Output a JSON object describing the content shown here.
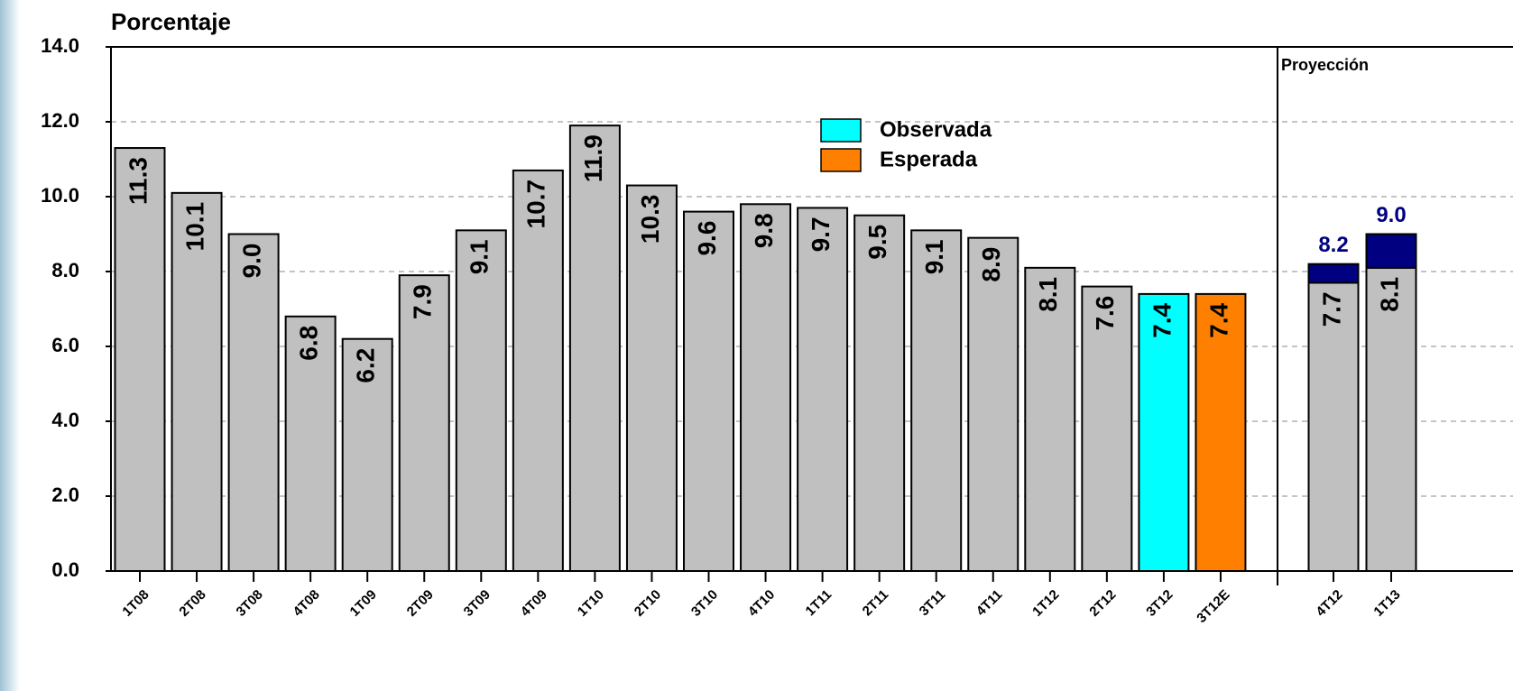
{
  "chart_data": {
    "type": "bar",
    "title": "Porcentaje",
    "categories": [
      "1T08",
      "2T08",
      "3T08",
      "4T08",
      "1T09",
      "2T09",
      "3T09",
      "4T09",
      "1T10",
      "2T10",
      "3T10",
      "4T10",
      "1T11",
      "2T11",
      "3T11",
      "4T11",
      "1T12",
      "2T12",
      "3T12",
      "3T12E"
    ],
    "values": [
      11.3,
      10.1,
      9.0,
      6.8,
      6.2,
      7.9,
      9.1,
      10.7,
      11.9,
      10.3,
      9.6,
      9.8,
      9.7,
      9.5,
      9.1,
      8.9,
      8.1,
      7.6,
      7.4,
      7.4
    ],
    "value_labels": [
      "11.3",
      "10.1",
      "9.0",
      "6.8",
      "6.2",
      "7.9",
      "9.1",
      "10.7",
      "11.9",
      "10.3",
      "9.6",
      "9.8",
      "9.7",
      "9.5",
      "9.1",
      "8.9",
      "8.1",
      "7.6",
      "7.4",
      "7.4"
    ],
    "colors": [
      "#c0c0c0",
      "#c0c0c0",
      "#c0c0c0",
      "#c0c0c0",
      "#c0c0c0",
      "#c0c0c0",
      "#c0c0c0",
      "#c0c0c0",
      "#c0c0c0",
      "#c0c0c0",
      "#c0c0c0",
      "#c0c0c0",
      "#c0c0c0",
      "#c0c0c0",
      "#c0c0c0",
      "#c0c0c0",
      "#c0c0c0",
      "#c0c0c0",
      "#00ffff",
      "#ff8000"
    ],
    "legend": [
      {
        "name": "Observada",
        "color": "#00ffff"
      },
      {
        "name": "Esperada",
        "color": "#ff8000"
      }
    ],
    "projection": {
      "label": "Proyección",
      "categories": [
        "4T12",
        "1T13"
      ],
      "values": [
        7.7,
        8.1
      ],
      "value_labels": [
        "7.7",
        "8.1"
      ],
      "color": "#c0c0c0",
      "totals": [
        8.2,
        9.0
      ],
      "totals_labels": [
        "8.2",
        "9.0"
      ],
      "totals_color": "#000080"
    },
    "ylim": [
      0,
      14
    ],
    "yticks": [
      {
        "value": 0,
        "label": "0.0"
      },
      {
        "value": 2,
        "label": "2.0"
      },
      {
        "value": 4,
        "label": "4.0"
      },
      {
        "value": 6,
        "label": "6.0"
      },
      {
        "value": 8,
        "label": "8.0"
      },
      {
        "value": 10,
        "label": "10.0"
      },
      {
        "value": 12,
        "label": "12.0"
      },
      {
        "value": 14,
        "label": "14.0"
      }
    ],
    "grid": true
  }
}
